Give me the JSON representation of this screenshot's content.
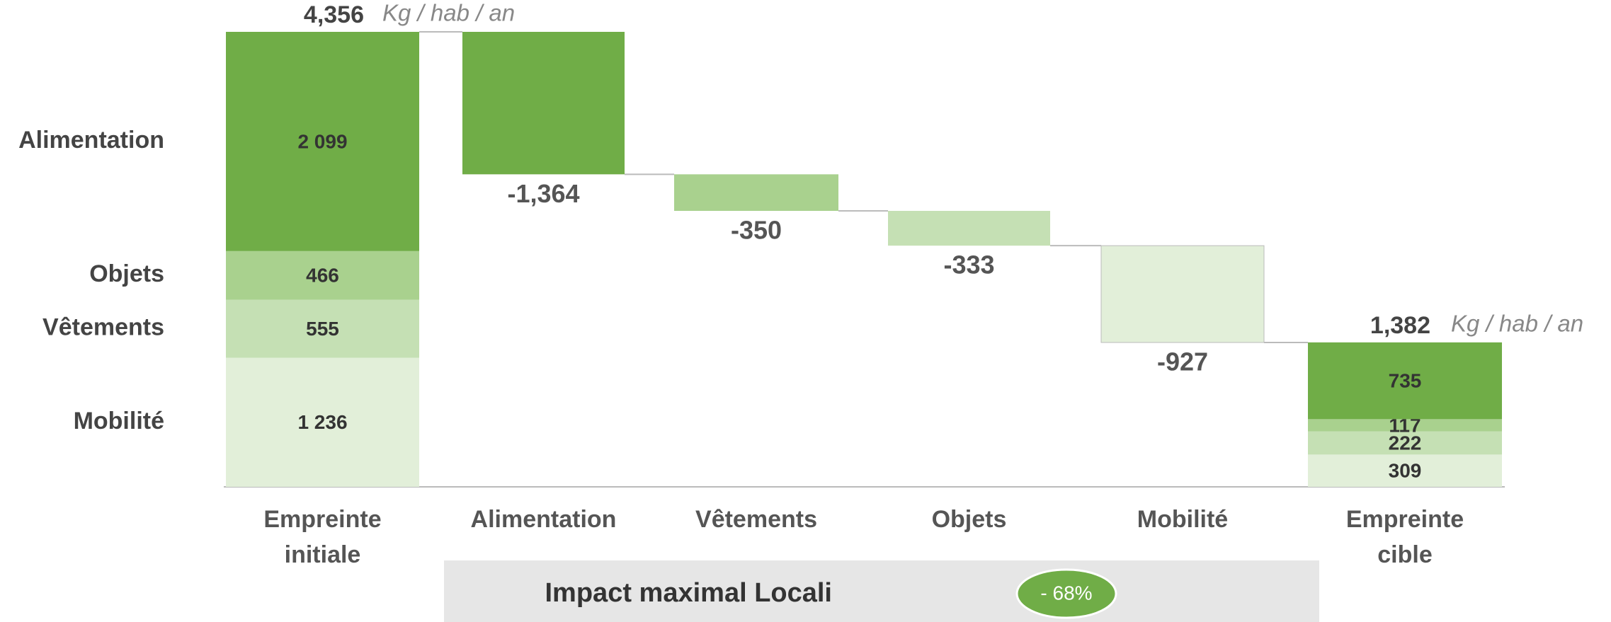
{
  "chart_data": {
    "type": "waterfall",
    "unit": "Kg / hab / an",
    "categories": [
      "Empreinte initiale",
      "Alimentation",
      "Vêtements",
      "Objets",
      "Mobilité",
      "Empreinte cible"
    ],
    "start": {
      "total": 4356,
      "total_label": "4,356",
      "segments": [
        {
          "name": "Alimentation",
          "color": "#70ad47",
          "value": 2099,
          "value_label": "2 099"
        },
        {
          "name": "Objets",
          "color": "#a9d18e",
          "value": 466
        },
        {
          "name": "Vêtements",
          "color": "#c5e0b4",
          "value": 555
        },
        {
          "name": "Mobilité",
          "color": "#e2efd9",
          "value": 1236,
          "value_label": "1 236"
        }
      ]
    },
    "steps": [
      {
        "value": -1364,
        "value_label": "-1,364",
        "color": "#70ad47"
      },
      {
        "value": -350,
        "color": "#a9d18e"
      },
      {
        "value": -333,
        "color": "#c5e0b4"
      },
      {
        "value": -927,
        "color": "#e2efd9"
      }
    ],
    "end": {
      "total": 1382,
      "total_label": "1,382",
      "segments": [
        {
          "color": "#70ad47",
          "value": 735
        },
        {
          "color": "#a9d18e",
          "value": 117
        },
        {
          "color": "#c5e0b4",
          "value": 222
        },
        {
          "color": "#e2efd9",
          "value": 309
        }
      ]
    }
  },
  "footer": {
    "title": "Impact maximal Locali",
    "badge": "- 68%"
  }
}
